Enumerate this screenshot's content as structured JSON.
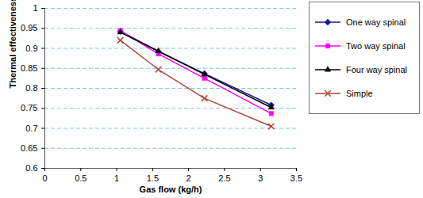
{
  "chart_data": {
    "type": "line",
    "x_label": "Gas flow (kg/h)",
    "y_label": "Thermal effectiveness",
    "x": [
      1.05,
      1.58,
      2.22,
      3.15
    ],
    "series": [
      {
        "name": "One way spinal",
        "color": "#1a1a8c",
        "marker": "diamond",
        "values": [
          0.943,
          0.892,
          0.837,
          0.758
        ]
      },
      {
        "name": "Two way spinal",
        "color": "#ff00ff",
        "marker": "square",
        "values": [
          0.944,
          0.886,
          0.825,
          0.737
        ]
      },
      {
        "name": "Four way spinal",
        "color": "#000000",
        "marker": "triangle",
        "values": [
          0.94,
          0.893,
          0.835,
          0.752
        ]
      },
      {
        "name": "Simple",
        "color": "#b0473a",
        "marker": "x",
        "values": [
          0.92,
          0.847,
          0.775,
          0.705
        ]
      }
    ],
    "xlim": [
      0,
      3.5
    ],
    "xticks": [
      0,
      0.5,
      1,
      1.5,
      2,
      2.5,
      3,
      3.5
    ],
    "ylim": [
      0.6,
      1
    ],
    "yticks": [
      0.6,
      0.65,
      0.7,
      0.75,
      0.8,
      0.85,
      0.9,
      0.95,
      1
    ],
    "grid": true,
    "legend": "right"
  }
}
